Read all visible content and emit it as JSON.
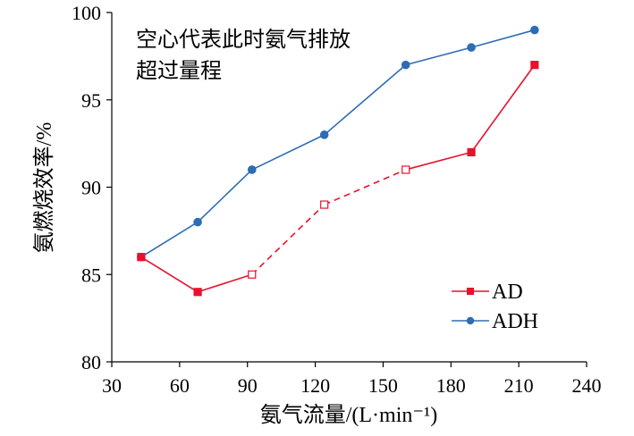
{
  "chart_data": {
    "type": "line",
    "xlabel": "氨气流量/(L·min⁻¹)",
    "ylabel": "氨燃烧效率/%",
    "xlim": [
      30,
      240
    ],
    "ylim": [
      80,
      100
    ],
    "xticks": [
      "30",
      "60",
      "90",
      "120",
      "150",
      "180",
      "210",
      "240"
    ],
    "yticks": [
      "80",
      "85",
      "90",
      "95",
      "100"
    ],
    "annotation": [
      "空心代表此时氨气排放",
      "超过量程"
    ],
    "legend_position": "lower-right",
    "series": [
      {
        "name": "AD",
        "color": "#e8112d",
        "marker": "square",
        "x": [
          43,
          68,
          92,
          124,
          160,
          189,
          217
        ],
        "y": [
          86,
          84,
          85,
          89,
          91,
          92,
          97
        ],
        "hollow": [
          false,
          false,
          true,
          true,
          true,
          false,
          false
        ],
        "dashed_segments": [
          [
            2,
            3
          ],
          [
            3,
            4
          ]
        ]
      },
      {
        "name": "ADH",
        "color": "#2e6db4",
        "marker": "circle",
        "x": [
          43,
          68,
          92,
          124,
          160,
          189,
          217
        ],
        "y": [
          86,
          88,
          91,
          93,
          97,
          98,
          99
        ],
        "hollow": [
          false,
          false,
          false,
          false,
          false,
          false,
          false
        ],
        "dashed_segments": []
      }
    ]
  }
}
